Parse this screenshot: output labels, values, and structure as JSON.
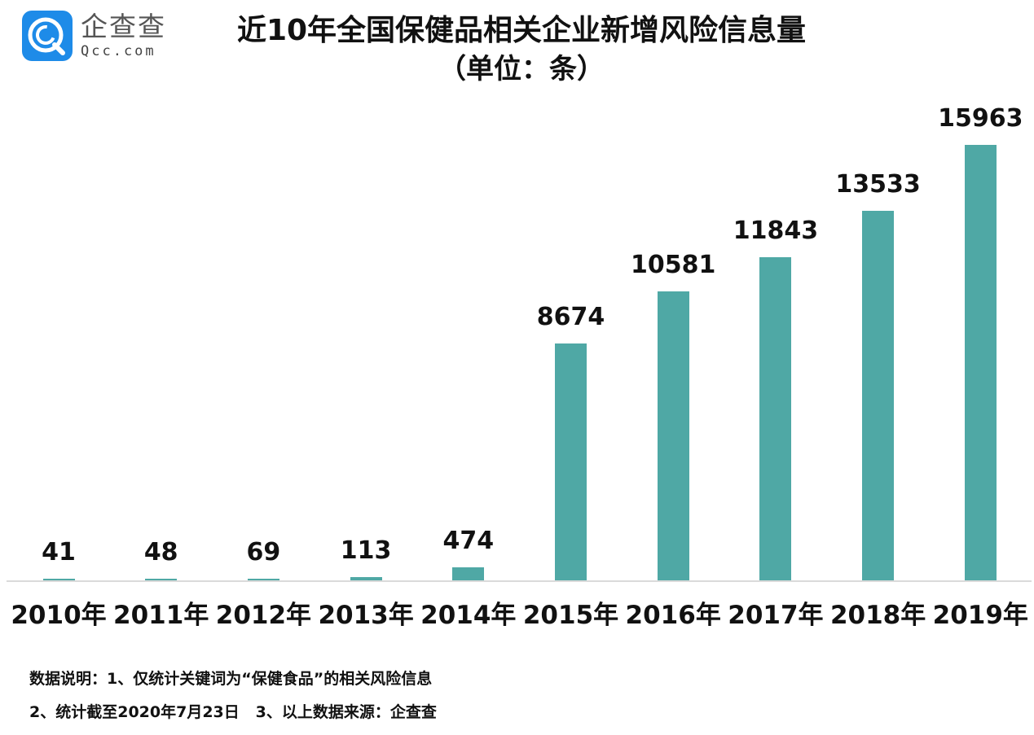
{
  "logo": {
    "icon": "qcc-logo-icon",
    "name_cn": "企查查",
    "name_en": "Qcc.com",
    "brand_color": "#1e8be8"
  },
  "header": {
    "title": "近10年全国保健品相关企业新增风险信息量",
    "subtitle": "（单位：条）"
  },
  "notes": {
    "line1": "数据说明：1、仅统计关键词为“保健食品”的相关风险信息",
    "line2": "2、统计截至2020年7月23日   3、以上数据来源：企查查"
  },
  "colors": {
    "bar": "#4fa8a5",
    "baseline": "#dadada",
    "text": "#111111"
  },
  "chart_data": {
    "type": "bar",
    "title": "近10年全国保健品相关企业新增风险信息量",
    "subtitle": "（单位：条）",
    "xlabel": "",
    "ylabel": "",
    "unit": "条",
    "categories": [
      "2010年",
      "2011年",
      "2012年",
      "2013年",
      "2014年",
      "2015年",
      "2016年",
      "2017年",
      "2018年",
      "2019年"
    ],
    "values": [
      41,
      48,
      69,
      113,
      474,
      8674,
      10581,
      11843,
      13533,
      15963
    ],
    "value_labels": [
      "41",
      "48",
      "69",
      "113",
      "474",
      "8674",
      "10581",
      "11843",
      "13533",
      "15963"
    ],
    "ylim": [
      0,
      16000
    ],
    "grid": false,
    "legend": null,
    "data_labels": true
  }
}
